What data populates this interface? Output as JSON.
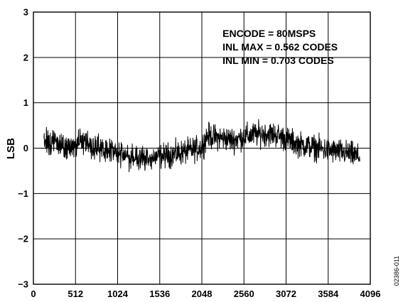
{
  "figure_code": "02386-011",
  "chart_data": {
    "type": "line",
    "title": "",
    "xlabel": "",
    "ylabel": "LSB",
    "xlim": [
      0,
      4096
    ],
    "ylim": [
      -3,
      3
    ],
    "grid": true,
    "x_ticks": [
      0,
      512,
      1024,
      1536,
      2048,
      2560,
      3072,
      3584,
      4096
    ],
    "y_ticks": [
      3,
      2,
      1,
      0,
      -1,
      -2,
      -3
    ],
    "x_tick_labels": [
      "0",
      "512",
      "1024",
      "1536",
      "2048",
      "2560",
      "3072",
      "3584",
      "4096"
    ],
    "y_tick_labels": [
      "3",
      "2",
      "1",
      "0",
      "−1",
      "−2",
      "−3"
    ],
    "annotations": [
      "ENCODE = 80MSPS",
      "INL MAX = 0.562 CODES",
      "INL MIN = 0.703 CODES"
    ],
    "series": [
      {
        "color": "#000000",
        "x": [
          128,
          256,
          384,
          512,
          640,
          768,
          896,
          1024,
          1152,
          1280,
          1408,
          1536,
          1664,
          1792,
          1920,
          2048,
          2112,
          2176,
          2304,
          2432,
          2560,
          2688,
          2816,
          2944,
          3072,
          3200,
          3328,
          3456,
          3584,
          3712,
          3840,
          3968
        ],
        "y": [
          0.15,
          0.12,
          0.02,
          0.05,
          0.1,
          0.0,
          -0.05,
          -0.12,
          -0.2,
          -0.25,
          -0.22,
          -0.18,
          -0.15,
          -0.1,
          -0.05,
          0.02,
          0.28,
          0.25,
          0.22,
          0.18,
          0.25,
          0.3,
          0.32,
          0.3,
          0.2,
          0.1,
          0.05,
          0.0,
          -0.05,
          -0.08,
          -0.12,
          -0.2
        ],
        "noise_amplitude": 0.28
      }
    ]
  }
}
